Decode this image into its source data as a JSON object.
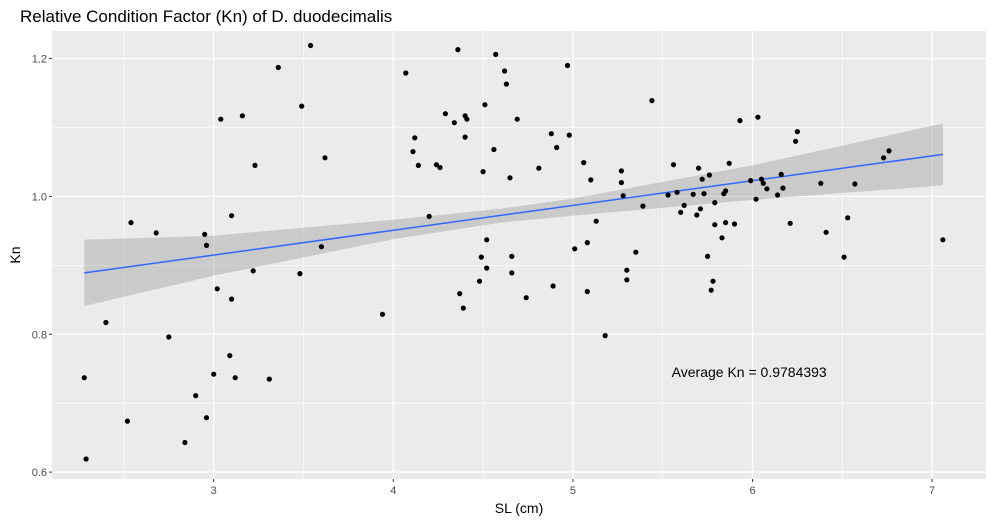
{
  "chart_data": {
    "type": "scatter",
    "title": "Relative Condition Factor (Kn) of D. duodecimalis",
    "xlabel": "SL (cm)",
    "ylabel": "Kn",
    "xlim": [
      2.1,
      7.3
    ],
    "ylim": [
      0.59,
      1.24
    ],
    "x_ticks": [
      3,
      4,
      5,
      6,
      7
    ],
    "y_ticks": [
      0.6,
      0.8,
      1.0,
      1.2
    ],
    "x_tick_labels": [
      "3",
      "4",
      "5",
      "6",
      "7"
    ],
    "y_tick_labels": [
      "0.6",
      "0.8",
      "1.0",
      "1.2"
    ],
    "grid": true,
    "annotation": {
      "text": "Average Kn = 0.9784393",
      "x": 5.55,
      "y": 0.745
    },
    "fit_line": {
      "x": [
        2.28,
        7.06
      ],
      "y": [
        0.889,
        1.061
      ]
    },
    "confidence_band": {
      "x": [
        2.28,
        3.0,
        4.0,
        4.6,
        5.0,
        6.0,
        7.06
      ],
      "lower": [
        0.841,
        0.885,
        0.938,
        0.962,
        0.972,
        0.995,
        1.016
      ],
      "upper": [
        0.937,
        0.943,
        0.966,
        0.982,
        0.997,
        1.045,
        1.106
      ]
    },
    "colors": {
      "points": "#000000",
      "line": "#3366FF",
      "band": "#999999",
      "panel": "#EBEBEB",
      "grid": "#FFFFFF"
    },
    "points": [
      [
        2.28,
        0.737
      ],
      [
        2.29,
        0.619
      ],
      [
        2.4,
        0.817
      ],
      [
        2.52,
        0.674
      ],
      [
        2.54,
        0.962
      ],
      [
        2.68,
        0.947
      ],
      [
        2.75,
        0.796
      ],
      [
        2.84,
        0.643
      ],
      [
        2.9,
        0.711
      ],
      [
        2.95,
        0.945
      ],
      [
        2.96,
        0.929
      ],
      [
        2.96,
        0.679
      ],
      [
        3.0,
        0.742
      ],
      [
        3.02,
        0.866
      ],
      [
        3.04,
        1.112
      ],
      [
        3.09,
        0.769
      ],
      [
        3.1,
        0.972
      ],
      [
        3.1,
        0.851
      ],
      [
        3.12,
        0.737
      ],
      [
        3.16,
        1.117
      ],
      [
        3.22,
        0.892
      ],
      [
        3.23,
        1.045
      ],
      [
        3.31,
        0.735
      ],
      [
        3.36,
        1.187
      ],
      [
        3.48,
        0.888
      ],
      [
        3.49,
        1.131
      ],
      [
        3.54,
        1.219
      ],
      [
        3.6,
        0.927
      ],
      [
        3.62,
        1.056
      ],
      [
        3.94,
        0.829
      ],
      [
        4.07,
        1.179
      ],
      [
        4.11,
        1.065
      ],
      [
        4.12,
        1.085
      ],
      [
        4.14,
        1.045
      ],
      [
        4.2,
        0.971
      ],
      [
        4.24,
        1.046
      ],
      [
        4.26,
        1.042
      ],
      [
        4.29,
        1.12
      ],
      [
        4.34,
        1.107
      ],
      [
        4.36,
        1.213
      ],
      [
        4.37,
        0.859
      ],
      [
        4.39,
        0.838
      ],
      [
        4.4,
        1.117
      ],
      [
        4.4,
        1.086
      ],
      [
        4.41,
        1.112
      ],
      [
        4.48,
        0.877
      ],
      [
        4.49,
        0.912
      ],
      [
        4.5,
        1.036
      ],
      [
        4.51,
        1.133
      ],
      [
        4.52,
        0.896
      ],
      [
        4.52,
        0.937
      ],
      [
        4.56,
        1.068
      ],
      [
        4.57,
        1.206
      ],
      [
        4.62,
        1.182
      ],
      [
        4.63,
        1.163
      ],
      [
        4.65,
        1.027
      ],
      [
        4.66,
        0.913
      ],
      [
        4.66,
        0.889
      ],
      [
        4.69,
        1.112
      ],
      [
        4.74,
        0.853
      ],
      [
        4.81,
        1.041
      ],
      [
        4.88,
        1.091
      ],
      [
        4.89,
        0.87
      ],
      [
        4.91,
        1.071
      ],
      [
        4.97,
        1.19
      ],
      [
        4.98,
        1.089
      ],
      [
        5.01,
        0.924
      ],
      [
        5.06,
        1.049
      ],
      [
        5.08,
        0.862
      ],
      [
        5.08,
        0.933
      ],
      [
        5.1,
        1.024
      ],
      [
        5.13,
        0.964
      ],
      [
        5.18,
        0.798
      ],
      [
        5.27,
        1.037
      ],
      [
        5.27,
        1.02
      ],
      [
        5.28,
        1.001
      ],
      [
        5.3,
        0.879
      ],
      [
        5.3,
        0.893
      ],
      [
        5.35,
        0.919
      ],
      [
        5.39,
        0.986
      ],
      [
        5.44,
        1.139
      ],
      [
        5.53,
        1.002
      ],
      [
        5.56,
        1.046
      ],
      [
        5.58,
        1.006
      ],
      [
        5.6,
        0.977
      ],
      [
        5.62,
        0.987
      ],
      [
        5.67,
        1.003
      ],
      [
        5.69,
        0.973
      ],
      [
        5.7,
        1.041
      ],
      [
        5.71,
        0.982
      ],
      [
        5.72,
        1.025
      ],
      [
        5.73,
        1.004
      ],
      [
        5.75,
        0.913
      ],
      [
        5.76,
        1.031
      ],
      [
        5.77,
        0.864
      ],
      [
        5.78,
        0.877
      ],
      [
        5.79,
        0.959
      ],
      [
        5.79,
        0.991
      ],
      [
        5.83,
        0.94
      ],
      [
        5.84,
        1.004
      ],
      [
        5.85,
        1.008
      ],
      [
        5.85,
        0.962
      ],
      [
        5.87,
        1.048
      ],
      [
        5.9,
        0.96
      ],
      [
        5.93,
        1.11
      ],
      [
        5.99,
        1.023
      ],
      [
        6.02,
        0.996
      ],
      [
        6.03,
        1.115
      ],
      [
        6.05,
        1.025
      ],
      [
        6.06,
        1.019
      ],
      [
        6.08,
        1.011
      ],
      [
        6.14,
        1.002
      ],
      [
        6.16,
        1.032
      ],
      [
        6.17,
        1.012
      ],
      [
        6.21,
        0.961
      ],
      [
        6.24,
        1.08
      ],
      [
        6.25,
        1.094
      ],
      [
        6.38,
        1.019
      ],
      [
        6.41,
        0.948
      ],
      [
        6.51,
        0.912
      ],
      [
        6.53,
        0.969
      ],
      [
        6.57,
        1.018
      ],
      [
        6.73,
        1.056
      ],
      [
        6.76,
        1.066
      ],
      [
        7.06,
        0.937
      ]
    ]
  }
}
